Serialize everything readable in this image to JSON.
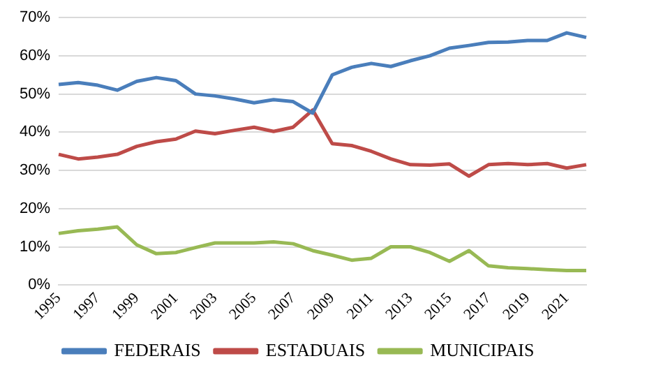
{
  "chart_data": {
    "type": "line",
    "categories": [
      "1995",
      null,
      "1997",
      null,
      "1999",
      null,
      "2001",
      null,
      "2003",
      null,
      "2005",
      null,
      "2007",
      null,
      "2009",
      null,
      "2011",
      null,
      "2013",
      null,
      "2015",
      null,
      "2017",
      null,
      "2019",
      null,
      "2021",
      null
    ],
    "series": [
      {
        "name": "FEDERAIS",
        "color": "#4a7ebb",
        "values": [
          52.5,
          53,
          52.3,
          51,
          53.3,
          54.3,
          53.5,
          50,
          49.5,
          48.7,
          47.7,
          48.5,
          48,
          45,
          55,
          57,
          58,
          57.2,
          58.7,
          60,
          62,
          62.7,
          63.5,
          63.6,
          64,
          64,
          66,
          64.8
        ]
      },
      {
        "name": "ESTADUAIS",
        "color": "#be4b48",
        "values": [
          34.2,
          33,
          33.5,
          34.2,
          36.3,
          37.5,
          38.2,
          40.3,
          39.6,
          40.5,
          41.3,
          40.2,
          41.3,
          45.8,
          37,
          36.5,
          35,
          33,
          31.5,
          31.4,
          31.7,
          28.5,
          31.5,
          31.8,
          31.5,
          31.8,
          30.6,
          31.5
        ]
      },
      {
        "name": "MUNICIPAIS",
        "color": "#98b954",
        "values": [
          13.5,
          14.2,
          14.6,
          15.2,
          10.5,
          8.2,
          8.5,
          9.8,
          11,
          11,
          11,
          11.3,
          10.8,
          9,
          7.8,
          6.5,
          7,
          10,
          10,
          8.5,
          6.2,
          9,
          5,
          4.5,
          4.3,
          4,
          3.8,
          3.8
        ]
      }
    ],
    "ylim": [
      0,
      70
    ],
    "yticks": [
      {
        "value": 0,
        "label": "0%"
      },
      {
        "value": 10,
        "label": "10%"
      },
      {
        "value": 20,
        "label": "20%"
      },
      {
        "value": 30,
        "label": "30%"
      },
      {
        "value": 40,
        "label": "40%"
      },
      {
        "value": 50,
        "label": "50%"
      },
      {
        "value": 60,
        "label": "60%"
      },
      {
        "value": 70,
        "label": "70%"
      }
    ],
    "grid": "y",
    "legend": "bottom",
    "marker": "none",
    "line_style": "solid"
  }
}
